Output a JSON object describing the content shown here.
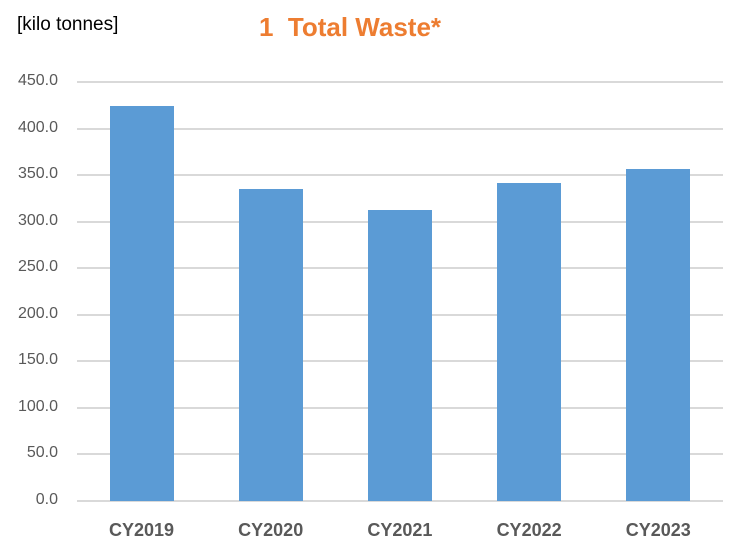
{
  "chart_data": {
    "type": "bar",
    "title": "1  Total Waste*",
    "unit_label": "[kilo tonnes]",
    "xlabel": "",
    "ylabel": "kilo tonnes",
    "categories": [
      "CY2019",
      "CY2020",
      "CY2021",
      "CY2022",
      "CY2023"
    ],
    "values": [
      424.0,
      335.0,
      312.6,
      341.6,
      356.6
    ],
    "ylim": [
      0,
      450
    ],
    "yticks": [
      "0.0",
      "50.0",
      "100.0",
      "150.0",
      "200.0",
      "250.0",
      "300.0",
      "350.0",
      "400.0",
      "450.0"
    ],
    "grid": true,
    "legend": null,
    "colors": {
      "bar": "#5B9BD5",
      "title": "#ED7D31",
      "grid": "#D9D9D9",
      "axis_text": "#595959"
    }
  }
}
